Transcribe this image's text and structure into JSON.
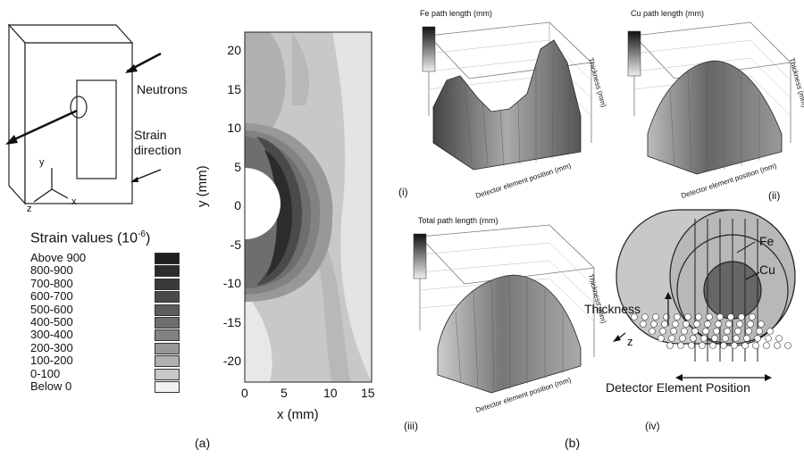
{
  "panel_a": {
    "schematic": {
      "neutrons_label": "Neutrons",
      "strain_label_1": "Strain",
      "strain_label_2": "direction",
      "axis_y": "y",
      "axis_x": "x",
      "axis_z": "z"
    },
    "legend": {
      "title": "Strain values (10",
      "title_exp": "-6",
      "title_close": ")",
      "items": [
        {
          "label": "Above 900",
          "color": "#1e1e1e"
        },
        {
          "label": "800-900",
          "color": "#2c2c2c"
        },
        {
          "label": "700-800",
          "color": "#3a3a3a"
        },
        {
          "label": "600-700",
          "color": "#4a4a4a"
        },
        {
          "label": "500-600",
          "color": "#5c5c5c"
        },
        {
          "label": "400-500",
          "color": "#6e6e6e"
        },
        {
          "label": "300-400",
          "color": "#828282"
        },
        {
          "label": "200-300",
          "color": "#989898"
        },
        {
          "label": "100-200",
          "color": "#b0b0b0"
        },
        {
          "label": "0-100",
          "color": "#c8c8c8"
        },
        {
          "label": "Below 0",
          "color": "#f2f2f2"
        }
      ]
    },
    "contour": {
      "xlabel": "x (mm)",
      "ylabel": "y (mm)",
      "xticks": [
        "0",
        "5",
        "10",
        "15"
      ],
      "yticks": [
        "20",
        "15",
        "10",
        "5",
        "0",
        "-5",
        "-10",
        "-15",
        "-20"
      ]
    },
    "caption": "(a)"
  },
  "panel_b": {
    "caption": "(b)",
    "plot_i": {
      "title": "Fe path length (mm)",
      "sub": "(i)",
      "colorbar_ticks": [
        "14.0",
        "12.0",
        "10.0",
        "8.0",
        "6.0",
        "4.0",
        "2.0",
        "0"
      ],
      "zticks": [
        "14",
        "12",
        "10",
        "8",
        "6",
        "4",
        "2"
      ],
      "top_ticks": [
        "5",
        "10",
        "15",
        "20"
      ],
      "side_label": "Thickness (mm)",
      "bottom_label": "Detector element position (mm)"
    },
    "plot_ii": {
      "title": "Cu path length (mm)",
      "sub": "(ii)",
      "colorbar_ticks": [
        "14.0",
        "12.0",
        "10.0",
        "8.0",
        "6.0",
        "4.0",
        "2.0",
        "0"
      ],
      "zticks": [
        "8",
        "6",
        "4",
        "2"
      ],
      "top_ticks": [
        "5",
        "10",
        "15",
        "20"
      ],
      "side_label": "Thickness (mm)",
      "bottom_label": "Detector element position (mm)"
    },
    "plot_iii": {
      "title": "Total path length (mm)",
      "sub": "(iii)",
      "colorbar_ticks": [
        "20",
        "15",
        "10",
        "5",
        "0"
      ],
      "zticks": [
        "20",
        "15",
        "10",
        "5"
      ],
      "top_ticks": [
        "5",
        "10",
        "15",
        "20"
      ],
      "side_label": "Thickness (mm)",
      "bottom_label": "Detector element position (mm)"
    },
    "plot_iv": {
      "fe_label": "Fe",
      "cu_label": "Cu",
      "thickness_label": "Thickness",
      "z_label": "z",
      "detector_label": "Detector Element Position",
      "sub": "(iv)"
    }
  }
}
